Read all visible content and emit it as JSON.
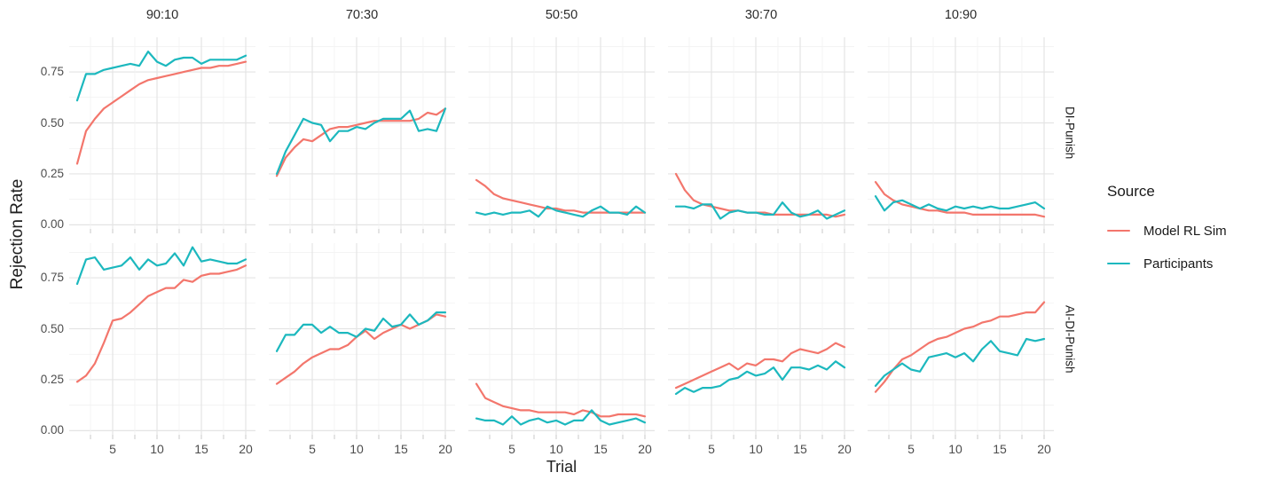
{
  "figure": {
    "y_axis_title": "Rejection Rate",
    "x_axis_title": "Trial",
    "column_facets": [
      "90:10",
      "70:30",
      "50:50",
      "30:70",
      "10:90"
    ],
    "row_facets": [
      "DI-Punish",
      "AI-DI-Punish"
    ],
    "x_tick_labels": [
      "5",
      "10",
      "15",
      "20"
    ],
    "y_tick_labels": [
      "0.00",
      "0.25",
      "0.50",
      "0.75"
    ],
    "legend": {
      "title": "Source",
      "entries": [
        {
          "label": "Model RL Sim",
          "color": "#F3766C"
        },
        {
          "label": "Participants",
          "color": "#1CB8BE"
        }
      ]
    },
    "style_colors": {
      "grid_major": "#E4E4E4",
      "grid_minor": "#F1F1F1",
      "axis_tick_mark": "#C9C9C9",
      "tick_text": "#4D4D4D",
      "title_text": "#1F1F1F"
    }
  },
  "chart_data": {
    "type": "line",
    "title": "",
    "xlabel": "Trial",
    "ylabel": "Rejection Rate",
    "x": [
      1,
      2,
      3,
      4,
      5,
      6,
      7,
      8,
      9,
      10,
      11,
      12,
      13,
      14,
      15,
      16,
      17,
      18,
      19,
      20
    ],
    "xlim": [
      1,
      20
    ],
    "ylim": [
      0,
      0.92
    ],
    "x_ticks": [
      5,
      10,
      15,
      20
    ],
    "y_ticks": [
      0.0,
      0.25,
      0.5,
      0.75
    ],
    "grid": true,
    "legend_position": "right",
    "facet_columns": [
      "90:10",
      "70:30",
      "50:50",
      "30:70",
      "10:90"
    ],
    "facet_rows": [
      "DI-Punish",
      "AI-DI-Punish"
    ],
    "series_names": [
      "Model RL Sim",
      "Participants"
    ],
    "panels": [
      {
        "row": "DI-Punish",
        "col": "90:10",
        "series": [
          {
            "name": "Model RL Sim",
            "values": [
              0.3,
              0.46,
              0.52,
              0.57,
              0.6,
              0.63,
              0.66,
              0.69,
              0.71,
              0.72,
              0.73,
              0.74,
              0.75,
              0.76,
              0.77,
              0.77,
              0.78,
              0.78,
              0.79,
              0.8
            ]
          },
          {
            "name": "Participants",
            "values": [
              0.61,
              0.74,
              0.74,
              0.76,
              0.77,
              0.78,
              0.79,
              0.78,
              0.85,
              0.8,
              0.78,
              0.81,
              0.82,
              0.82,
              0.79,
              0.81,
              0.81,
              0.81,
              0.81,
              0.83
            ]
          }
        ]
      },
      {
        "row": "DI-Punish",
        "col": "70:30",
        "series": [
          {
            "name": "Model RL Sim",
            "values": [
              0.24,
              0.33,
              0.38,
              0.42,
              0.41,
              0.44,
              0.47,
              0.48,
              0.48,
              0.49,
              0.5,
              0.51,
              0.51,
              0.51,
              0.51,
              0.51,
              0.52,
              0.55,
              0.54,
              0.57
            ]
          },
          {
            "name": "Participants",
            "values": [
              0.25,
              0.36,
              0.44,
              0.52,
              0.5,
              0.49,
              0.41,
              0.46,
              0.46,
              0.48,
              0.47,
              0.5,
              0.52,
              0.52,
              0.52,
              0.56,
              0.46,
              0.47,
              0.46,
              0.57
            ]
          }
        ]
      },
      {
        "row": "DI-Punish",
        "col": "50:50",
        "series": [
          {
            "name": "Model RL Sim",
            "values": [
              0.22,
              0.19,
              0.15,
              0.13,
              0.12,
              0.11,
              0.1,
              0.09,
              0.08,
              0.08,
              0.07,
              0.07,
              0.06,
              0.06,
              0.06,
              0.06,
              0.06,
              0.06,
              0.06,
              0.06
            ]
          },
          {
            "name": "Participants",
            "values": [
              0.06,
              0.05,
              0.06,
              0.05,
              0.06,
              0.06,
              0.07,
              0.04,
              0.09,
              0.07,
              0.06,
              0.05,
              0.04,
              0.07,
              0.09,
              0.06,
              0.06,
              0.05,
              0.09,
              0.06
            ]
          }
        ]
      },
      {
        "row": "DI-Punish",
        "col": "30:70",
        "series": [
          {
            "name": "Model RL Sim",
            "values": [
              0.25,
              0.17,
              0.12,
              0.1,
              0.09,
              0.08,
              0.07,
              0.07,
              0.06,
              0.06,
              0.06,
              0.05,
              0.05,
              0.05,
              0.05,
              0.05,
              0.05,
              0.05,
              0.04,
              0.05
            ]
          },
          {
            "name": "Participants",
            "values": [
              0.09,
              0.09,
              0.08,
              0.1,
              0.1,
              0.03,
              0.06,
              0.07,
              0.06,
              0.06,
              0.05,
              0.05,
              0.11,
              0.06,
              0.04,
              0.05,
              0.07,
              0.03,
              0.05,
              0.07
            ]
          }
        ]
      },
      {
        "row": "DI-Punish",
        "col": "10:90",
        "series": [
          {
            "name": "Model RL Sim",
            "values": [
              0.21,
              0.15,
              0.12,
              0.1,
              0.09,
              0.08,
              0.07,
              0.07,
              0.06,
              0.06,
              0.06,
              0.05,
              0.05,
              0.05,
              0.05,
              0.05,
              0.05,
              0.05,
              0.05,
              0.04
            ]
          },
          {
            "name": "Participants",
            "values": [
              0.14,
              0.07,
              0.11,
              0.12,
              0.1,
              0.08,
              0.1,
              0.08,
              0.07,
              0.09,
              0.08,
              0.09,
              0.08,
              0.09,
              0.08,
              0.08,
              0.09,
              0.1,
              0.11,
              0.08
            ]
          }
        ]
      },
      {
        "row": "AI-DI-Punish",
        "col": "90:10",
        "series": [
          {
            "name": "Model RL Sim",
            "values": [
              0.24,
              0.27,
              0.33,
              0.43,
              0.54,
              0.55,
              0.58,
              0.62,
              0.66,
              0.68,
              0.7,
              0.7,
              0.74,
              0.73,
              0.76,
              0.77,
              0.77,
              0.78,
              0.79,
              0.81
            ]
          },
          {
            "name": "Participants",
            "values": [
              0.72,
              0.84,
              0.85,
              0.79,
              0.8,
              0.81,
              0.85,
              0.79,
              0.84,
              0.81,
              0.82,
              0.87,
              0.81,
              0.9,
              0.83,
              0.84,
              0.83,
              0.82,
              0.82,
              0.84
            ]
          }
        ]
      },
      {
        "row": "AI-DI-Punish",
        "col": "70:30",
        "series": [
          {
            "name": "Model RL Sim",
            "values": [
              0.23,
              0.26,
              0.29,
              0.33,
              0.36,
              0.38,
              0.4,
              0.4,
              0.42,
              0.46,
              0.49,
              0.45,
              0.48,
              0.5,
              0.52,
              0.5,
              0.52,
              0.54,
              0.57,
              0.56
            ]
          },
          {
            "name": "Participants",
            "values": [
              0.39,
              0.47,
              0.47,
              0.52,
              0.52,
              0.48,
              0.51,
              0.48,
              0.48,
              0.46,
              0.5,
              0.49,
              0.55,
              0.51,
              0.52,
              0.57,
              0.52,
              0.54,
              0.58,
              0.58
            ]
          }
        ]
      },
      {
        "row": "AI-DI-Punish",
        "col": "50:50",
        "series": [
          {
            "name": "Model RL Sim",
            "values": [
              0.23,
              0.16,
              0.14,
              0.12,
              0.11,
              0.1,
              0.1,
              0.09,
              0.09,
              0.09,
              0.09,
              0.08,
              0.1,
              0.09,
              0.07,
              0.07,
              0.08,
              0.08,
              0.08,
              0.07
            ]
          },
          {
            "name": "Participants",
            "values": [
              0.06,
              0.05,
              0.05,
              0.03,
              0.07,
              0.03,
              0.05,
              0.06,
              0.04,
              0.05,
              0.03,
              0.05,
              0.05,
              0.1,
              0.05,
              0.03,
              0.04,
              0.05,
              0.06,
              0.04
            ]
          }
        ]
      },
      {
        "row": "AI-DI-Punish",
        "col": "30:70",
        "series": [
          {
            "name": "Model RL Sim",
            "values": [
              0.21,
              0.23,
              0.25,
              0.27,
              0.29,
              0.31,
              0.33,
              0.3,
              0.33,
              0.32,
              0.35,
              0.35,
              0.34,
              0.38,
              0.4,
              0.39,
              0.38,
              0.4,
              0.43,
              0.41
            ]
          },
          {
            "name": "Participants",
            "values": [
              0.18,
              0.21,
              0.19,
              0.21,
              0.21,
              0.22,
              0.25,
              0.26,
              0.29,
              0.27,
              0.28,
              0.31,
              0.25,
              0.31,
              0.31,
              0.3,
              0.32,
              0.3,
              0.34,
              0.31
            ]
          }
        ]
      },
      {
        "row": "AI-DI-Punish",
        "col": "10:90",
        "series": [
          {
            "name": "Model RL Sim",
            "values": [
              0.19,
              0.24,
              0.3,
              0.35,
              0.37,
              0.4,
              0.43,
              0.45,
              0.46,
              0.48,
              0.5,
              0.51,
              0.53,
              0.54,
              0.56,
              0.56,
              0.57,
              0.58,
              0.58,
              0.63
            ]
          },
          {
            "name": "Participants",
            "values": [
              0.22,
              0.27,
              0.3,
              0.33,
              0.3,
              0.29,
              0.36,
              0.37,
              0.38,
              0.36,
              0.38,
              0.34,
              0.4,
              0.44,
              0.39,
              0.38,
              0.37,
              0.45,
              0.44,
              0.45
            ]
          }
        ]
      }
    ]
  }
}
